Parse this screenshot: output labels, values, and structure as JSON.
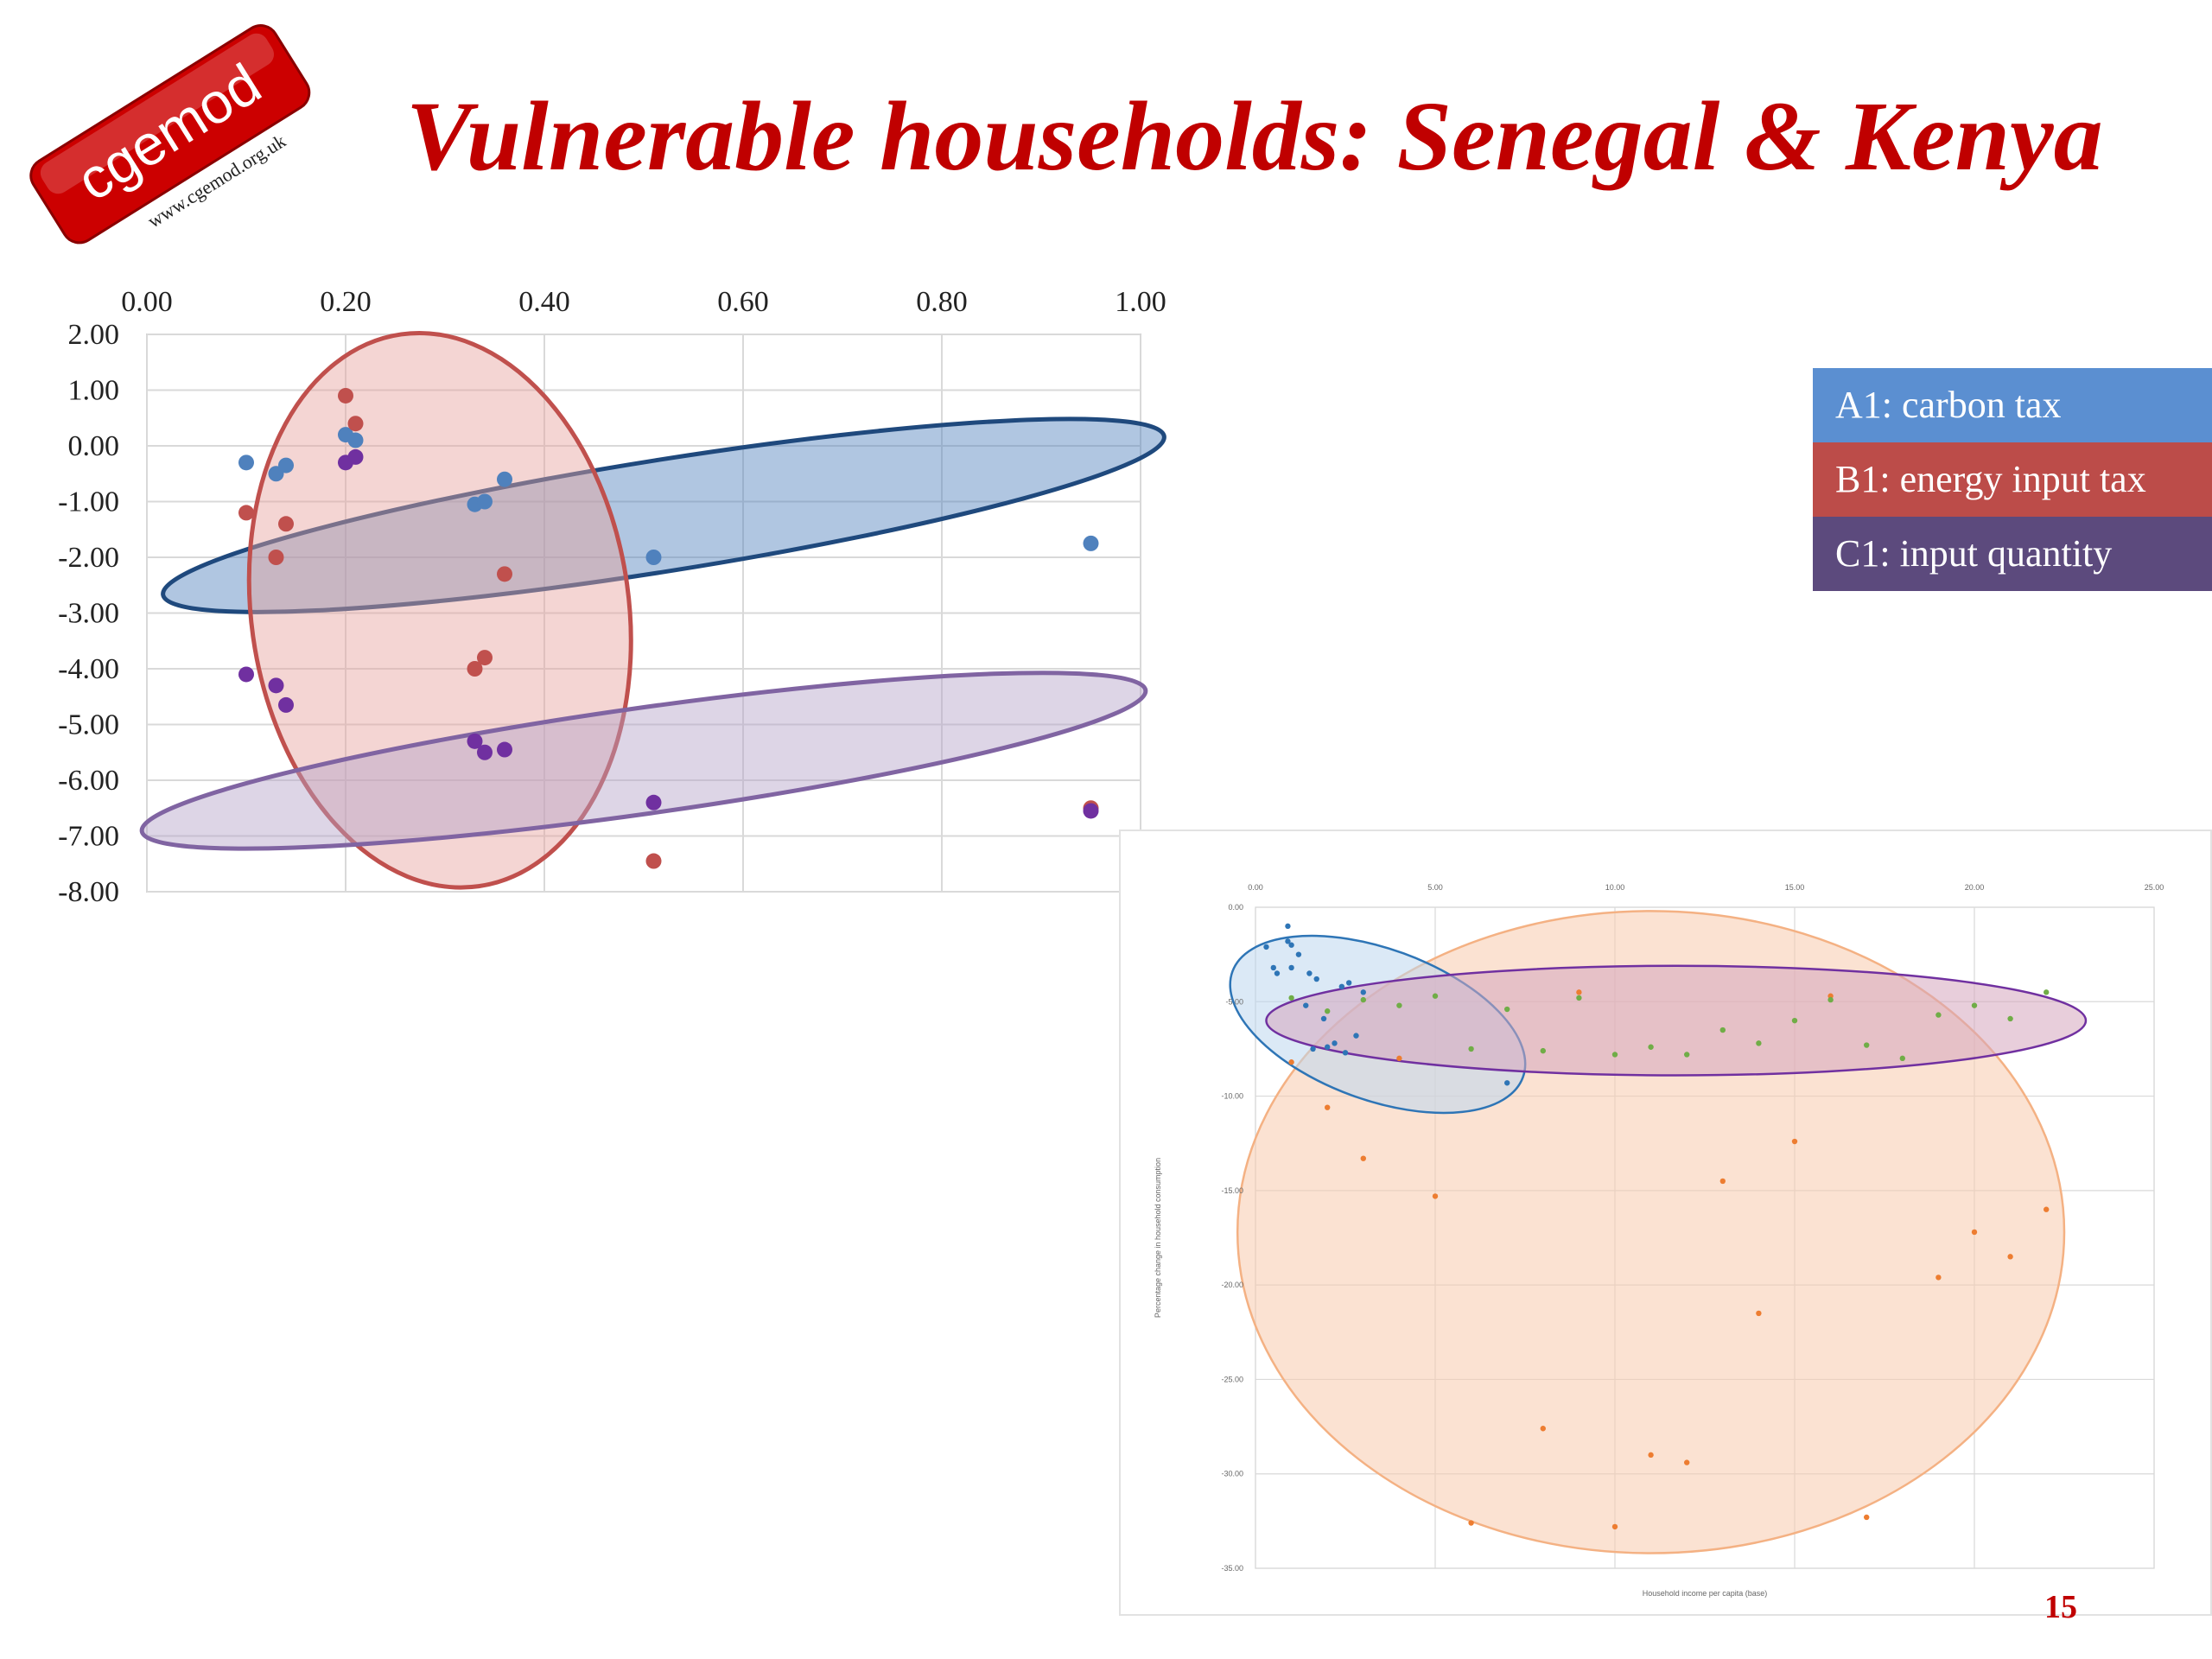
{
  "title": "Vulnerable households: Senegal & Kenya",
  "logo": {
    "name": "cgemod",
    "url": "www.cgemod.org.uk",
    "color": "#cc0000"
  },
  "legend": [
    {
      "label": "A1: carbon tax",
      "color": "#5b8fd1"
    },
    {
      "label": "B1: energy input tax",
      "color": "#bc4c49"
    },
    {
      "label": "C1: input quantity",
      "color": "#5c4a7d"
    }
  ],
  "page_number": "15",
  "chart_data": [
    {
      "type": "scatter",
      "title": "",
      "xlabel": "",
      "ylabel": "",
      "xlim": [
        0,
        1
      ],
      "ylim": [
        -8,
        2
      ],
      "x_ticks": [
        "0.00",
        "0.20",
        "0.40",
        "0.60",
        "0.80",
        "1.00"
      ],
      "y_ticks": [
        "2.00",
        "1.00",
        "0.00",
        "-1.00",
        "-2.00",
        "-3.00",
        "-4.00",
        "-5.00",
        "-6.00",
        "-7.00",
        "-8.00"
      ],
      "grid": true,
      "series": [
        {
          "color": "#4f81bd",
          "points": [
            [
              0.1,
              -0.3
            ],
            [
              0.13,
              -0.5
            ],
            [
              0.14,
              -0.35
            ],
            [
              0.2,
              0.2
            ],
            [
              0.21,
              0.1
            ],
            [
              0.33,
              -1.05
            ],
            [
              0.34,
              -1.0
            ],
            [
              0.36,
              -0.6
            ],
            [
              0.51,
              -2.0
            ],
            [
              0.95,
              -1.75
            ]
          ]
        },
        {
          "color": "#c0504d",
          "points": [
            [
              0.1,
              -1.2
            ],
            [
              0.13,
              -2.0
            ],
            [
              0.14,
              -1.4
            ],
            [
              0.2,
              0.9
            ],
            [
              0.21,
              0.4
            ],
            [
              0.33,
              -4.0
            ],
            [
              0.34,
              -3.8
            ],
            [
              0.36,
              -2.3
            ],
            [
              0.51,
              -7.45
            ],
            [
              0.95,
              -6.5
            ]
          ]
        },
        {
          "color": "#7030a0",
          "points": [
            [
              0.1,
              -4.1
            ],
            [
              0.13,
              -4.3
            ],
            [
              0.14,
              -4.65
            ],
            [
              0.2,
              -0.3
            ],
            [
              0.21,
              -0.2
            ],
            [
              0.33,
              -5.3
            ],
            [
              0.34,
              -5.5
            ],
            [
              0.36,
              -5.45
            ],
            [
              0.51,
              -6.4
            ],
            [
              0.95,
              -6.55
            ]
          ]
        }
      ],
      "ellipses": [
        {
          "color": "#1f497d",
          "fill": "#4f81bd",
          "cx": 0.52,
          "cy": -1.25,
          "rx": 0.51,
          "ry": 1.0,
          "angle_deg": -9
        },
        {
          "color": "#c0504d",
          "fill": "#e6a29d",
          "cx": 0.295,
          "cy": -2.95,
          "rx": 0.19,
          "ry": 5.0,
          "angle_deg": -8
        },
        {
          "color": "#8064a2",
          "fill": "#b3a2c7",
          "cx": 0.5,
          "cy": -5.65,
          "rx": 0.51,
          "ry": 0.95,
          "angle_deg": -8
        }
      ]
    },
    {
      "type": "scatter",
      "title": "",
      "xlabel": "Household income per capita (base)",
      "ylabel": "Percentage change in household consumption",
      "xlim": [
        0,
        25
      ],
      "ylim": [
        -35,
        0
      ],
      "x_ticks": [
        "0.00",
        "5.00",
        "10.00",
        "15.00",
        "20.00",
        "25.00"
      ],
      "y_ticks": [
        "0.00",
        "-5.00",
        "-10.00",
        "-15.00",
        "-20.00",
        "-25.00",
        "-30.00",
        "-35.00"
      ],
      "grid": true,
      "series": [
        {
          "color": "#2e75b6",
          "points": [
            [
              0.3,
              -2.1
            ],
            [
              0.5,
              -3.2
            ],
            [
              0.6,
              -3.5
            ],
            [
              0.9,
              -1.0
            ],
            [
              0.9,
              -1.8
            ],
            [
              1.0,
              -2.0
            ],
            [
              1.0,
              -3.2
            ],
            [
              1.2,
              -2.5
            ],
            [
              1.4,
              -5.2
            ],
            [
              1.5,
              -3.5
            ],
            [
              1.7,
              -3.8
            ],
            [
              1.9,
              -5.9
            ],
            [
              2.2,
              -7.2
            ],
            [
              2.4,
              -4.2
            ],
            [
              2.6,
              -4.0
            ],
            [
              2.8,
              -6.8
            ],
            [
              3.0,
              -4.5
            ],
            [
              7.0,
              -9.3
            ],
            [
              1.6,
              -7.5
            ],
            [
              2.0,
              -7.4
            ],
            [
              2.5,
              -7.7
            ]
          ]
        },
        {
          "color": "#ed7d31",
          "points": [
            [
              1.0,
              -8.2
            ],
            [
              2.0,
              -10.6
            ],
            [
              3.0,
              -13.3
            ],
            [
              5.0,
              -15.3
            ],
            [
              4.0,
              -8.0
            ],
            [
              6.0,
              -32.6
            ],
            [
              8.0,
              -27.6
            ],
            [
              9.0,
              -4.5
            ],
            [
              10.0,
              -32.8
            ],
            [
              11.0,
              -29.0
            ],
            [
              12.0,
              -29.4
            ],
            [
              13.0,
              -14.5
            ],
            [
              14.0,
              -21.5
            ],
            [
              15.0,
              -12.4
            ],
            [
              16.0,
              -4.7
            ],
            [
              17.0,
              -32.3
            ],
            [
              19.0,
              -19.6
            ],
            [
              20.0,
              -17.2
            ],
            [
              21.0,
              -18.5
            ],
            [
              22.0,
              -16.0
            ]
          ]
        },
        {
          "color": "#70ad47",
          "points": [
            [
              1.0,
              -4.8
            ],
            [
              2.0,
              -5.5
            ],
            [
              3.0,
              -4.9
            ],
            [
              4.0,
              -5.2
            ],
            [
              5.0,
              -4.7
            ],
            [
              6.0,
              -7.5
            ],
            [
              7.0,
              -5.4
            ],
            [
              8.0,
              -7.6
            ],
            [
              9.0,
              -4.8
            ],
            [
              10.0,
              -7.8
            ],
            [
              11.0,
              -7.4
            ],
            [
              12.0,
              -7.8
            ],
            [
              13.0,
              -6.5
            ],
            [
              14.0,
              -7.2
            ],
            [
              15.0,
              -6.0
            ],
            [
              16.0,
              -4.9
            ],
            [
              17.0,
              -7.3
            ],
            [
              18.0,
              -8.0
            ],
            [
              19.0,
              -5.7
            ],
            [
              20.0,
              -5.2
            ],
            [
              21.0,
              -5.9
            ],
            [
              22.0,
              -4.5
            ]
          ]
        }
      ],
      "ellipses": [
        {
          "color": "#f4b183",
          "fill": "#f8cbad",
          "cx": 11.0,
          "cy": -17.2,
          "rx": 11.5,
          "ry": 17.0,
          "angle_deg": 0
        },
        {
          "color": "#2e75b6",
          "fill": "#bdd7ee",
          "cx": 3.4,
          "cy": -6.2,
          "rx": 4.3,
          "ry": 4.0,
          "angle_deg": 20
        },
        {
          "color": "#7030a0",
          "fill": "#d5a6bd",
          "cx": 11.7,
          "cy": -6.0,
          "rx": 11.4,
          "ry": 2.9,
          "angle_deg": 0
        }
      ]
    }
  ]
}
